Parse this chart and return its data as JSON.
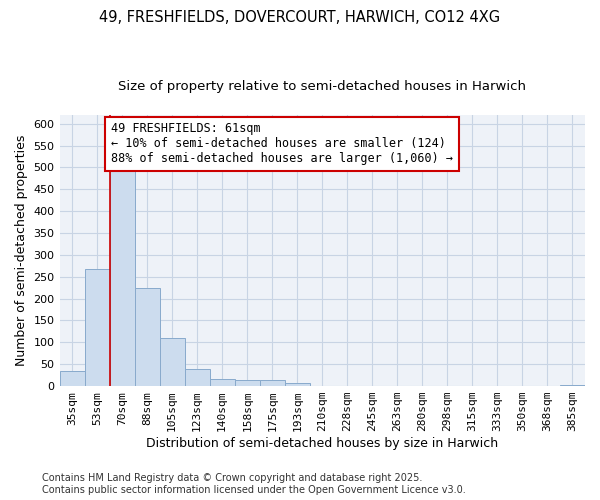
{
  "title_line1": "49, FRESHFIELDS, DOVERCOURT, HARWICH, CO12 4XG",
  "title_line2": "Size of property relative to semi-detached houses in Harwich",
  "xlabel": "Distribution of semi-detached houses by size in Harwich",
  "ylabel": "Number of semi-detached properties",
  "categories": [
    "35sqm",
    "53sqm",
    "70sqm",
    "88sqm",
    "105sqm",
    "123sqm",
    "140sqm",
    "158sqm",
    "175sqm",
    "193sqm",
    "210sqm",
    "228sqm",
    "245sqm",
    "263sqm",
    "280sqm",
    "298sqm",
    "315sqm",
    "333sqm",
    "350sqm",
    "368sqm",
    "385sqm"
  ],
  "values": [
    35,
    268,
    493,
    225,
    109,
    40,
    17,
    14,
    14,
    7,
    1,
    0,
    0,
    0,
    1,
    0,
    0,
    0,
    0,
    1,
    3
  ],
  "bar_color": "#ccdcee",
  "bar_edge_color": "#88aacc",
  "vline_position": 1.5,
  "vline_color": "#cc0000",
  "annotation_text": "49 FRESHFIELDS: 61sqm\n← 10% of semi-detached houses are smaller (124)\n88% of semi-detached houses are larger (1,060) →",
  "annotation_box_color": "#ffffff",
  "annotation_box_edge": "#cc0000",
  "ylim": [
    0,
    620
  ],
  "yticks": [
    0,
    50,
    100,
    150,
    200,
    250,
    300,
    350,
    400,
    450,
    500,
    550,
    600
  ],
  "grid_color": "#c8d4e4",
  "background_color": "#ffffff",
  "plot_bg_color": "#eef2f8",
  "footer_text": "Contains HM Land Registry data © Crown copyright and database right 2025.\nContains public sector information licensed under the Open Government Licence v3.0.",
  "title_fontsize": 10.5,
  "subtitle_fontsize": 9.5,
  "axis_label_fontsize": 9,
  "tick_fontsize": 8,
  "annotation_fontsize": 8.5,
  "footer_fontsize": 7
}
